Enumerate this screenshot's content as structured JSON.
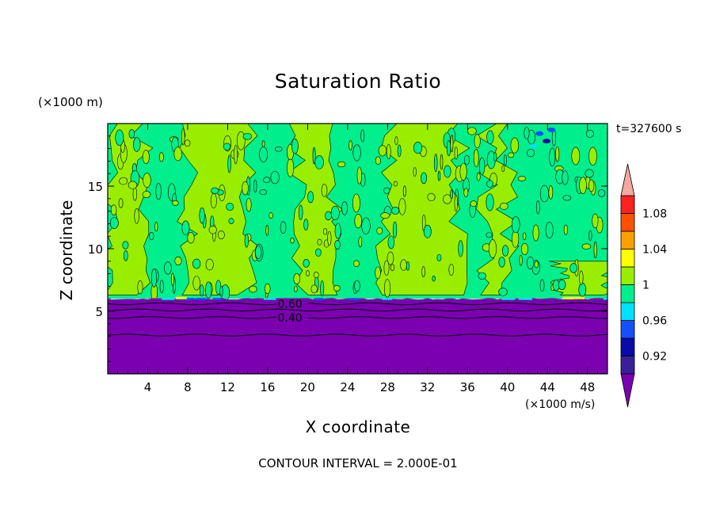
{
  "chart_data": {
    "type": "contour",
    "title": "Saturation Ratio",
    "xlabel": "X coordinate",
    "ylabel": "Z coordinate",
    "x_unit": "(×1000 m/s)",
    "y_unit": "(×1000 m)",
    "time_label": "t=327600 s",
    "footnote": "CONTOUR INTERVAL = 2.000E-01",
    "xlim": [
      0,
      50
    ],
    "ylim": [
      0,
      20
    ],
    "x_ticks": [
      4,
      8,
      12,
      16,
      20,
      24,
      28,
      32,
      36,
      40,
      44,
      48
    ],
    "y_ticks": [
      5,
      10,
      15
    ],
    "grid": false,
    "inversion_height": 6,
    "contour_lines": [
      {
        "label": "0.60",
        "z": 5.6,
        "label_x": 17
      },
      {
        "label": "0.40",
        "z": 4.5,
        "label_x": 17
      },
      {
        "label": "",
        "z": 5.1
      },
      {
        "label": "",
        "z": 3.1
      }
    ],
    "colorbar": {
      "labels": [
        "1.08",
        "1.04",
        "1",
        "0.96",
        "0.92"
      ],
      "levels": [
        {
          "lo": 0.9,
          "hi": 0.92,
          "color": "#3a1f9c"
        },
        {
          "lo": 0.92,
          "hi": 0.94,
          "color": "#0a0aa8"
        },
        {
          "lo": 0.94,
          "hi": 0.96,
          "color": "#1450ff"
        },
        {
          "lo": 0.96,
          "hi": 0.98,
          "color": "#00e0ff"
        },
        {
          "lo": 0.98,
          "hi": 1.0,
          "color": "#00ee8c"
        },
        {
          "lo": 1.0,
          "hi": 1.02,
          "color": "#99ee00"
        },
        {
          "lo": 1.02,
          "hi": 1.04,
          "color": "#ffff00"
        },
        {
          "lo": 1.04,
          "hi": 1.06,
          "color": "#ffa000"
        },
        {
          "lo": 1.06,
          "hi": 1.08,
          "color": "#ff5000"
        },
        {
          "lo": 1.08,
          "hi": 1.1,
          "color": "#ff2020"
        }
      ],
      "over_color": "#f5a8a0",
      "under_color": "#7a00b0"
    },
    "colors": {
      "dry_layer": "#7a00b0",
      "saturated": "#00ee8c",
      "supersaturated": "#99ee00"
    },
    "bands": [
      {
        "x0": 0,
        "x1": 3.5,
        "sat": 1,
        "top": 20
      },
      {
        "x0": 3.5,
        "x1": 8,
        "sat": 0,
        "top": 20
      },
      {
        "x0": 8,
        "x1": 14,
        "sat": 1,
        "top": 20
      },
      {
        "x0": 14,
        "x1": 19,
        "sat": 0,
        "top": 20
      },
      {
        "x0": 19,
        "x1": 22.5,
        "sat": 1,
        "top": 20
      },
      {
        "x0": 22.5,
        "x1": 28,
        "sat": 0,
        "top": 20
      },
      {
        "x0": 28,
        "x1": 35,
        "sat": 1,
        "top": 20
      },
      {
        "x0": 35,
        "x1": 38,
        "sat": 0,
        "top": 20
      },
      {
        "x0": 38,
        "x1": 40,
        "sat": 1,
        "top": 20
      },
      {
        "x0": 40,
        "x1": 45,
        "sat": 0,
        "top": 20
      },
      {
        "x0": 45,
        "x1": 50,
        "sat": 1,
        "top": 9
      }
    ]
  }
}
